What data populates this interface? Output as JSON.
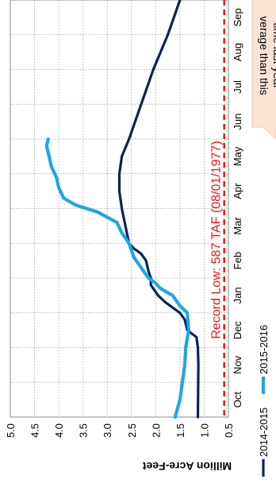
{
  "chart_data": {
    "type": "line",
    "orientation": "rotated 90 degrees clockwise (months read along the vertical axis, values along the horizontal axis)",
    "title": "",
    "ylabel": "Million Acre-Feet",
    "xlabel": "",
    "ylim": [
      0.5,
      5.0
    ],
    "yticks": [
      "0.5",
      "1.0",
      "1.5",
      "2.0",
      "2.5",
      "3.0",
      "3.5",
      "4.0",
      "4.5",
      "5.0"
    ],
    "categories": [
      "Oct",
      "Nov",
      "Dec",
      "Jan",
      "Feb",
      "Mar",
      "Apr",
      "May",
      "Jun",
      "Jul",
      "Aug",
      "Sep"
    ],
    "grid": true,
    "legend_placement": "bottom-right",
    "series": [
      {
        "name": "2014-2015",
        "color": "#0b2260",
        "points": [
          [
            0.0,
            1.13
          ],
          [
            1.5,
            1.12
          ],
          [
            2.0,
            1.13
          ],
          [
            2.3,
            1.16
          ],
          [
            2.5,
            1.35
          ],
          [
            2.8,
            1.4
          ],
          [
            3.0,
            1.5
          ],
          [
            3.3,
            1.8
          ],
          [
            3.5,
            1.95
          ],
          [
            3.8,
            2.1
          ],
          [
            4.0,
            2.1
          ],
          [
            4.2,
            2.15
          ],
          [
            4.5,
            2.2
          ],
          [
            4.7,
            2.3
          ],
          [
            4.85,
            2.45
          ],
          [
            5.0,
            2.55
          ],
          [
            6.0,
            2.7
          ],
          [
            6.5,
            2.75
          ],
          [
            7.0,
            2.75
          ],
          [
            7.5,
            2.7
          ],
          [
            8.0,
            2.55
          ],
          [
            9.0,
            2.3
          ],
          [
            10.0,
            2.05
          ],
          [
            11.0,
            1.75
          ],
          [
            12.0,
            1.5
          ]
        ]
      },
      {
        "name": "2015-2016",
        "color": "#1ea7e1",
        "points": [
          [
            0.0,
            1.6
          ],
          [
            0.5,
            1.5
          ],
          [
            1.0,
            1.45
          ],
          [
            1.5,
            1.4
          ],
          [
            2.0,
            1.38
          ],
          [
            2.5,
            1.32
          ],
          [
            3.0,
            1.35
          ],
          [
            3.2,
            1.5
          ],
          [
            3.5,
            1.65
          ],
          [
            3.7,
            1.9
          ],
          [
            3.85,
            2.0
          ],
          [
            4.0,
            2.15
          ],
          [
            4.3,
            2.3
          ],
          [
            4.6,
            2.45
          ],
          [
            4.8,
            2.5
          ],
          [
            5.0,
            2.55
          ],
          [
            5.3,
            2.7
          ],
          [
            5.6,
            2.8
          ],
          [
            5.9,
            3.2
          ],
          [
            6.1,
            3.65
          ],
          [
            6.3,
            3.9
          ],
          [
            6.6,
            4.0
          ],
          [
            6.9,
            4.05
          ],
          [
            7.2,
            4.15
          ],
          [
            7.5,
            4.2
          ],
          [
            7.8,
            4.25
          ],
          [
            8.0,
            4.22
          ]
        ]
      }
    ],
    "reference_line": {
      "value": 0.587,
      "label": "Record Low: 587 TAF (08/01/1977)",
      "color": "#e8161b",
      "style": "dashed"
    },
    "callout": {
      "lines": [
        "verage than this",
        "time last year"
      ],
      "fill": "#fbe3d3"
    }
  }
}
